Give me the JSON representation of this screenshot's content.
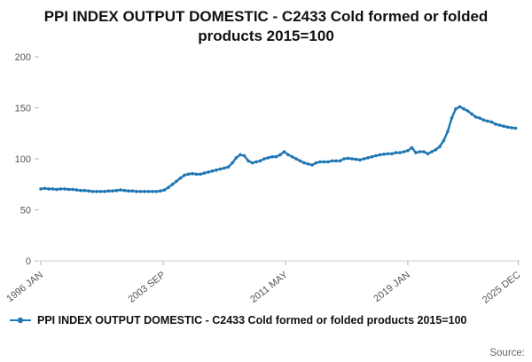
{
  "title": "PPI INDEX OUTPUT DOMESTIC - C2433 Cold formed or folded products 2015=100",
  "legend": {
    "label": "PPI INDEX OUTPUT DOMESTIC - C2433 Cold formed or folded products 2015=100"
  },
  "source": {
    "label": "Source:"
  },
  "chart_data": {
    "type": "line",
    "title": "PPI INDEX OUTPUT DOMESTIC - C2433 Cold formed or folded products 2015=100",
    "xlabel": "",
    "ylabel": "",
    "xlim": [
      1996,
      2026
    ],
    "ylim": [
      0,
      200
    ],
    "yticks": [
      0,
      50,
      100,
      150,
      200
    ],
    "xticks": [
      {
        "x": 1996.0,
        "label": "1996 JAN"
      },
      {
        "x": 2003.667,
        "label": "2003 SEP"
      },
      {
        "x": 2011.333,
        "label": "2011 MAY"
      },
      {
        "x": 2019.0,
        "label": "2019 JAN"
      },
      {
        "x": 2025.917,
        "label": "2025 DEC"
      }
    ],
    "grid": false,
    "legend_position": "bottom",
    "line_color": "#1f77b4",
    "series": [
      {
        "name": "PPI INDEX OUTPUT DOMESTIC - C2433 Cold formed or folded products 2015=100",
        "start_x": 1996.0,
        "step_x": 0.25,
        "values": [
          70.5,
          71,
          70.5,
          70.5,
          70,
          70.5,
          70.5,
          70,
          70,
          69.5,
          69,
          69,
          68.5,
          68,
          68,
          68,
          68,
          68.5,
          68.5,
          69,
          69.5,
          69,
          68.5,
          68.5,
          68,
          68,
          68,
          68,
          68,
          68,
          68.5,
          69.5,
          72,
          75,
          78,
          81,
          84,
          85,
          85.5,
          85,
          85,
          86,
          87,
          88,
          89,
          90,
          91,
          92,
          96,
          101,
          104,
          103,
          98,
          96,
          97,
          98,
          100,
          101,
          102,
          102,
          104,
          107,
          104,
          102,
          100,
          98,
          96,
          95,
          94,
          96,
          97,
          97,
          97,
          98,
          98,
          98,
          100,
          100.5,
          100,
          99.5,
          99,
          100,
          101,
          102,
          103,
          104,
          104.5,
          105,
          105,
          106,
          106,
          107,
          108,
          111,
          106,
          107,
          107,
          105,
          107,
          109,
          112,
          118,
          127,
          140,
          149,
          151,
          149,
          147,
          144,
          141,
          140,
          138,
          137,
          136,
          134,
          133,
          132,
          131,
          130.5,
          130
        ]
      }
    ]
  }
}
